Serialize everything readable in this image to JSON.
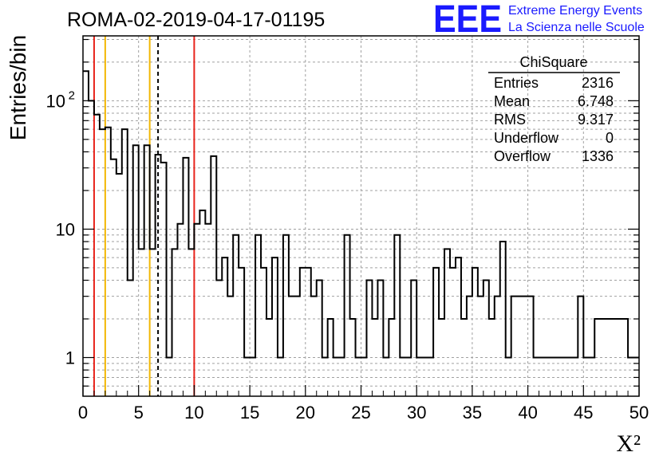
{
  "header": {
    "run_title": "ROMA-02-2019-04-17-01195",
    "logo": "EEE",
    "logo_line1": "Extreme Energy Events",
    "logo_line2": "La Scienza nelle Scuole"
  },
  "stats_box": {
    "title": "ChiSquare",
    "rows": [
      {
        "label": "Entries",
        "value": "2316"
      },
      {
        "label": "Mean",
        "value": "6.748"
      },
      {
        "label": "RMS",
        "value": "9.317"
      },
      {
        "label": "Underflow",
        "value": "0"
      },
      {
        "label": "Overflow",
        "value": "1336"
      }
    ]
  },
  "colors": {
    "histogram": "#000000",
    "grid": "#a0a0a0",
    "red_line": "#e8231b",
    "yellow_line": "#f2b705",
    "cut_line": "#000000",
    "logo_blue": "#1a1aff"
  },
  "chart_data": {
    "type": "histogram",
    "title": "ROMA-02-2019-04-17-01195",
    "xlabel": "X²",
    "ylabel": "Entries/bin",
    "xlim": [
      0,
      50
    ],
    "ylim": [
      0.5,
      320
    ],
    "y_scale": "log",
    "grid": true,
    "bin_width": 0.5,
    "x_ticks": [
      0,
      5,
      10,
      15,
      20,
      25,
      30,
      35,
      40,
      45,
      50
    ],
    "y_ticks": [
      {
        "value": 1,
        "label": "1"
      },
      {
        "value": 10,
        "label": "10"
      },
      {
        "value": 100,
        "label": "10",
        "sup": "2"
      }
    ],
    "values": [
      170,
      100,
      78,
      60,
      62,
      35,
      27,
      60,
      4,
      45,
      7,
      45,
      7,
      38,
      33,
      1,
      7,
      11,
      36,
      7,
      11,
      14,
      11,
      37,
      4,
      6,
      3,
      9,
      5,
      1,
      1,
      9,
      5,
      2,
      6,
      1,
      9,
      3,
      3,
      5,
      5,
      3,
      4,
      1,
      2,
      1,
      1,
      9,
      2,
      1,
      1,
      4,
      2,
      4,
      1,
      2,
      9,
      1,
      1,
      4,
      1,
      1,
      1,
      5,
      2,
      7,
      5,
      6,
      2,
      3,
      5,
      3,
      4,
      2,
      3,
      8,
      1,
      3,
      3,
      3,
      3,
      1,
      1,
      1,
      1,
      1,
      1,
      1,
      1,
      3,
      1,
      1,
      2,
      2,
      2,
      2,
      2,
      2,
      1,
      1
    ],
    "vertical_lines": [
      {
        "x": 1,
        "color": "red",
        "style": "solid"
      },
      {
        "x": 2,
        "color": "yellow",
        "style": "solid"
      },
      {
        "x": 6,
        "color": "yellow",
        "style": "solid"
      },
      {
        "x": 6.75,
        "color": "black",
        "style": "dashed"
      },
      {
        "x": 10,
        "color": "red",
        "style": "solid"
      }
    ]
  }
}
